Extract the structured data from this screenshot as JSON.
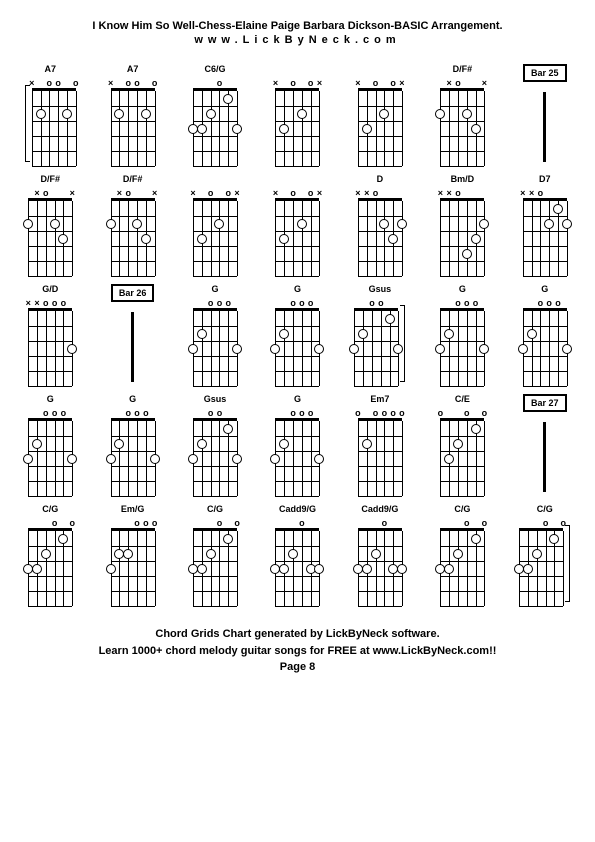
{
  "header": {
    "title": "I Know Him So Well-Chess-Elaine Paige Barbara Dickson-BASIC Arrangement.",
    "subtitle": "www.LickByNeck.com"
  },
  "footer": {
    "line1": "Chord Grids Chart generated by LickByNeck software.",
    "line2": "Learn 1000+ chord melody guitar songs for FREE at www.LickByNeck.com!!",
    "page": "Page 8"
  },
  "layout": {
    "strings": 6,
    "frets": 5,
    "string_spacing": 8.8,
    "fret_spacing": 15,
    "colors": {
      "bg": "#ffffff",
      "line": "#000000",
      "text": "#000000"
    }
  },
  "cells": [
    {
      "type": "chord",
      "label": "A7",
      "marks": [
        "x",
        "",
        "o",
        "o",
        "",
        "o"
      ],
      "fingers": [
        [
          2,
          2
        ],
        [
          5,
          2
        ]
      ],
      "bracket": "left"
    },
    {
      "type": "chord",
      "label": "A7",
      "marks": [
        "x",
        "",
        "o",
        "o",
        "",
        "o"
      ],
      "fingers": [
        [
          2,
          2
        ],
        [
          5,
          2
        ]
      ]
    },
    {
      "type": "chord",
      "label": "C6/G",
      "marks": [
        "",
        "",
        "",
        "o",
        "",
        ""
      ],
      "fingers": [
        [
          1,
          3
        ],
        [
          2,
          3
        ],
        [
          3,
          2
        ],
        [
          5,
          1
        ],
        [
          6,
          3
        ]
      ]
    },
    {
      "type": "chord",
      "label": "",
      "marks": [
        "x",
        "",
        "o",
        "",
        "o",
        "x"
      ],
      "fingers": [
        [
          2,
          3
        ],
        [
          4,
          2
        ]
      ]
    },
    {
      "type": "chord",
      "label": "",
      "marks": [
        "x",
        "",
        "o",
        "",
        "o",
        "x"
      ],
      "fingers": [
        [
          2,
          3
        ],
        [
          4,
          2
        ]
      ]
    },
    {
      "type": "chord",
      "label": "D/F#",
      "marks": [
        "",
        "x",
        "o",
        "",
        "",
        "x"
      ],
      "fingers": [
        [
          1,
          2
        ],
        [
          4,
          2
        ],
        [
          5,
          3
        ]
      ]
    },
    {
      "type": "bar",
      "label": "Bar 25"
    },
    {
      "type": "chord",
      "label": "D/F#",
      "marks": [
        "",
        "x",
        "o",
        "",
        "",
        "x"
      ],
      "fingers": [
        [
          1,
          2
        ],
        [
          4,
          2
        ],
        [
          5,
          3
        ]
      ]
    },
    {
      "type": "chord",
      "label": "D/F#",
      "marks": [
        "",
        "x",
        "o",
        "",
        "",
        "x"
      ],
      "fingers": [
        [
          1,
          2
        ],
        [
          4,
          2
        ],
        [
          5,
          3
        ]
      ]
    },
    {
      "type": "chord",
      "label": "",
      "marks": [
        "x",
        "",
        "o",
        "",
        "o",
        "x"
      ],
      "fingers": [
        [
          2,
          3
        ],
        [
          4,
          2
        ]
      ]
    },
    {
      "type": "chord",
      "label": "",
      "marks": [
        "x",
        "",
        "o",
        "",
        "o",
        "x"
      ],
      "fingers": [
        [
          2,
          3
        ],
        [
          4,
          2
        ]
      ]
    },
    {
      "type": "chord",
      "label": "D",
      "marks": [
        "x",
        "x",
        "o",
        "",
        "",
        ""
      ],
      "fingers": [
        [
          4,
          2
        ],
        [
          5,
          3
        ],
        [
          6,
          2
        ]
      ]
    },
    {
      "type": "chord",
      "label": "Bm/D",
      "marks": [
        "x",
        "x",
        "o",
        "",
        "",
        ""
      ],
      "fingers": [
        [
          4,
          4
        ],
        [
          5,
          3
        ],
        [
          6,
          2
        ]
      ]
    },
    {
      "type": "chord",
      "label": "D7",
      "marks": [
        "x",
        "x",
        "o",
        "",
        "",
        ""
      ],
      "fingers": [
        [
          4,
          2
        ],
        [
          5,
          1
        ],
        [
          6,
          2
        ]
      ]
    },
    {
      "type": "chord",
      "label": "G/D",
      "marks": [
        "x",
        "x",
        "o",
        "o",
        "o",
        ""
      ],
      "fingers": [
        [
          6,
          3
        ]
      ]
    },
    {
      "type": "bar",
      "label": "Bar 26"
    },
    {
      "type": "chord",
      "label": "G",
      "marks": [
        "",
        "",
        "o",
        "o",
        "o",
        ""
      ],
      "fingers": [
        [
          1,
          3
        ],
        [
          2,
          2
        ],
        [
          6,
          3
        ]
      ]
    },
    {
      "type": "chord",
      "label": "G",
      "marks": [
        "",
        "",
        "o",
        "o",
        "o",
        ""
      ],
      "fingers": [
        [
          1,
          3
        ],
        [
          2,
          2
        ],
        [
          6,
          3
        ]
      ]
    },
    {
      "type": "chord",
      "label": "Gsus",
      "marks": [
        "",
        "",
        "o",
        "o",
        "",
        ""
      ],
      "fingers": [
        [
          1,
          3
        ],
        [
          2,
          2
        ],
        [
          5,
          1
        ],
        [
          6,
          3
        ]
      ],
      "bracket": "right"
    },
    {
      "type": "chord",
      "label": "G",
      "marks": [
        "",
        "",
        "o",
        "o",
        "o",
        ""
      ],
      "fingers": [
        [
          1,
          3
        ],
        [
          2,
          2
        ],
        [
          6,
          3
        ]
      ]
    },
    {
      "type": "chord",
      "label": "G",
      "marks": [
        "",
        "",
        "o",
        "o",
        "o",
        ""
      ],
      "fingers": [
        [
          1,
          3
        ],
        [
          2,
          2
        ],
        [
          6,
          3
        ]
      ]
    },
    {
      "type": "chord",
      "label": "G",
      "marks": [
        "",
        "",
        "o",
        "o",
        "o",
        ""
      ],
      "fingers": [
        [
          1,
          3
        ],
        [
          2,
          2
        ],
        [
          6,
          3
        ]
      ]
    },
    {
      "type": "chord",
      "label": "G",
      "marks": [
        "",
        "",
        "o",
        "o",
        "o",
        ""
      ],
      "fingers": [
        [
          1,
          3
        ],
        [
          2,
          2
        ],
        [
          6,
          3
        ]
      ]
    },
    {
      "type": "chord",
      "label": "Gsus",
      "marks": [
        "",
        "",
        "o",
        "o",
        "",
        ""
      ],
      "fingers": [
        [
          1,
          3
        ],
        [
          2,
          2
        ],
        [
          5,
          1
        ],
        [
          6,
          3
        ]
      ]
    },
    {
      "type": "chord",
      "label": "G",
      "marks": [
        "",
        "",
        "o",
        "o",
        "o",
        ""
      ],
      "fingers": [
        [
          1,
          3
        ],
        [
          2,
          2
        ],
        [
          6,
          3
        ]
      ]
    },
    {
      "type": "chord",
      "label": "Em7",
      "marks": [
        "o",
        "",
        "o",
        "o",
        "o",
        "o"
      ],
      "fingers": [
        [
          2,
          2
        ]
      ]
    },
    {
      "type": "chord",
      "label": "C/E",
      "marks": [
        "o",
        "",
        "",
        "o",
        "",
        "o"
      ],
      "fingers": [
        [
          2,
          3
        ],
        [
          3,
          2
        ],
        [
          5,
          1
        ]
      ]
    },
    {
      "type": "bar",
      "label": "Bar 27"
    },
    {
      "type": "chord",
      "label": "C/G",
      "marks": [
        "",
        "",
        "",
        "o",
        "",
        "o"
      ],
      "fingers": [
        [
          1,
          3
        ],
        [
          2,
          3
        ],
        [
          3,
          2
        ],
        [
          5,
          1
        ]
      ]
    },
    {
      "type": "chord",
      "label": "Em/G",
      "marks": [
        "",
        "",
        "",
        "o",
        "o",
        "o"
      ],
      "fingers": [
        [
          1,
          3
        ],
        [
          2,
          2
        ],
        [
          3,
          2
        ]
      ]
    },
    {
      "type": "chord",
      "label": "C/G",
      "marks": [
        "",
        "",
        "",
        "o",
        "",
        "o"
      ],
      "fingers": [
        [
          1,
          3
        ],
        [
          2,
          3
        ],
        [
          3,
          2
        ],
        [
          5,
          1
        ]
      ]
    },
    {
      "type": "chord",
      "label": "Cadd9/G",
      "marks": [
        "",
        "",
        "",
        "o",
        "",
        ""
      ],
      "fingers": [
        [
          1,
          3
        ],
        [
          2,
          3
        ],
        [
          3,
          2
        ],
        [
          5,
          3
        ],
        [
          6,
          3
        ]
      ]
    },
    {
      "type": "chord",
      "label": "Cadd9/G",
      "marks": [
        "",
        "",
        "",
        "o",
        "",
        ""
      ],
      "fingers": [
        [
          1,
          3
        ],
        [
          2,
          3
        ],
        [
          3,
          2
        ],
        [
          5,
          3
        ],
        [
          6,
          3
        ]
      ]
    },
    {
      "type": "chord",
      "label": "C/G",
      "marks": [
        "",
        "",
        "",
        "o",
        "",
        "o"
      ],
      "fingers": [
        [
          1,
          3
        ],
        [
          2,
          3
        ],
        [
          3,
          2
        ],
        [
          5,
          1
        ]
      ]
    },
    {
      "type": "chord",
      "label": "C/G",
      "marks": [
        "",
        "",
        "",
        "o",
        "",
        "o"
      ],
      "fingers": [
        [
          1,
          3
        ],
        [
          2,
          3
        ],
        [
          3,
          2
        ],
        [
          5,
          1
        ]
      ],
      "bracket": "right"
    }
  ]
}
